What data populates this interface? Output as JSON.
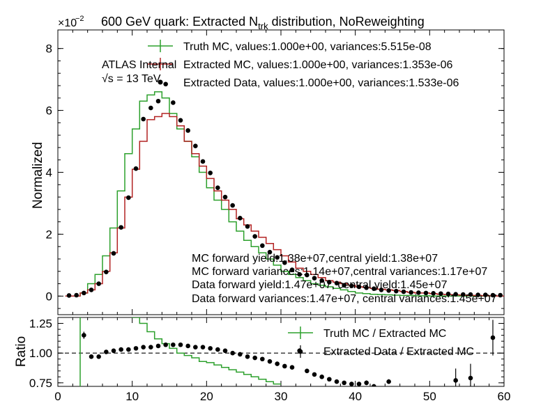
{
  "figure": {
    "title": "600 GeV quark: Extracted N",
    "title_sub": "trk",
    "title_tail": " distribution, NoReweighting",
    "scale_base": "×10",
    "scale_exp": "−2",
    "atlas_label": "ATLAS Internal",
    "energy_label": "√s = 13 TeV"
  },
  "notes": [
    "MC forward yield:1.38e+07,central yield:1.38e+07",
    "MC forward variances:1.14e+07,central variances:1.17e+07",
    "Data forward yield:1.47e+07, central yield:1.45e+07",
    "Data forward variances:1.47e+07, central variances:1.45e+07"
  ],
  "colors": {
    "truth": "#2ca02c",
    "extracted_mc": "#b22222",
    "data": "#000000"
  },
  "chart_data": [
    {
      "type": "step",
      "ylabel": "Normalized",
      "xlim": [
        0,
        60
      ],
      "ylim": [
        -0.006,
        0.086
      ],
      "yticks": [
        0,
        0.02,
        0.04,
        0.06,
        0.08
      ],
      "ytick_labels": [
        "0",
        "2",
        "4",
        "6",
        "8"
      ],
      "bin_edges": [
        1,
        2,
        3,
        4,
        5,
        6,
        7,
        8,
        9,
        10,
        11,
        12,
        13,
        14,
        15,
        16,
        17,
        18,
        19,
        20,
        21,
        22,
        23,
        24,
        25,
        26,
        27,
        28,
        29,
        30,
        31,
        32,
        33,
        34,
        35,
        36,
        37,
        38,
        39,
        40,
        41,
        42,
        43,
        44,
        45,
        46,
        47,
        48,
        49,
        50,
        51,
        52,
        53,
        54,
        55,
        56,
        57,
        58,
        59,
        60
      ],
      "series": [
        {
          "name": "Truth MC, values:1.000e+00, variances:5.515e-08",
          "kind": "step",
          "values": [
            0,
            0,
            0.001,
            0.004,
            0.007,
            0.013,
            0.022,
            0.034,
            0.046,
            0.054,
            0.063,
            0.065,
            0.066,
            0.064,
            0.059,
            0.054,
            0.05,
            0.045,
            0.04,
            0.035,
            0.031,
            0.028,
            0.024,
            0.021,
            0.018,
            0.016,
            0.014,
            0.012,
            0.01,
            0.008,
            0.007,
            0.006,
            0.005,
            0.004,
            0.0035,
            0.003,
            0.0025,
            0.002,
            0.0015,
            0.001,
            0.0008,
            0.0006,
            0.0005,
            0.0004,
            0.0003,
            0.0002,
            0.0002,
            0.0001,
            0.0001,
            0,
            0,
            0,
            0,
            0,
            0,
            0,
            0,
            0,
            0
          ]
        },
        {
          "name": "Extracted MC, values:1.000e+00, variances:1.353e-06",
          "kind": "step",
          "values": [
            0,
            0,
            0.001,
            0.002,
            0.004,
            0.008,
            0.014,
            0.022,
            0.032,
            0.041,
            0.05,
            0.057,
            0.058,
            0.059,
            0.058,
            0.055,
            0.05,
            0.046,
            0.042,
            0.038,
            0.034,
            0.031,
            0.028,
            0.025,
            0.023,
            0.021,
            0.019,
            0.017,
            0.015,
            0.013,
            0.011,
            0.009,
            0.008,
            0.007,
            0.006,
            0.005,
            0.0045,
            0.004,
            0.0035,
            0.003,
            0.0028,
            0.0025,
            0.0022,
            0.002,
            0.0018,
            0.0015,
            0.0012,
            0.001,
            0.001,
            0.0008,
            0.0006,
            0.0005,
            0.0004,
            0.0003,
            0.0002,
            0.0002,
            0.0001,
            0.0001,
            0
          ]
        },
        {
          "name": "Extracted Data, values:1.000e+00, variances:1.533e-06",
          "kind": "points",
          "x": [
            1.5,
            2.5,
            3.5,
            4.5,
            5.5,
            6.5,
            7.5,
            8.5,
            9.5,
            10.5,
            11.5,
            12.5,
            13.5,
            14.5,
            15.5,
            16.5,
            17.5,
            18.5,
            19.5,
            20.5,
            21.5,
            22.5,
            23.5,
            24.5,
            25.5,
            26.5,
            27.5,
            28.5,
            29.5,
            30.5,
            31.5,
            32.5,
            33.5,
            34.5,
            35.5,
            36.5,
            37.5,
            38.5,
            39.5,
            40.5,
            41.5,
            42.5,
            43.5,
            44.5,
            45.5,
            46.5,
            47.5,
            48.5,
            49.5,
            50.5,
            51.5,
            52.5,
            53.5,
            54.5,
            55.5,
            56.5,
            57.5,
            58.5,
            59.5
          ],
          "values": [
            0.0002,
            0.0003,
            0.001,
            0.002,
            0.004,
            0.0078,
            0.0138,
            0.0222,
            0.0318,
            0.0412,
            0.0572,
            0.0608,
            0.063,
            0.0685,
            0.0625,
            0.0568,
            0.0535,
            0.0485,
            0.0435,
            0.0398,
            0.035,
            0.032,
            0.0293,
            0.0252,
            0.0225,
            0.0193,
            0.0163,
            0.0142,
            0.0125,
            0.0108,
            0.0085,
            0.007,
            0.0068,
            0.0058,
            0.005,
            0.0045,
            0.0042,
            0.0035,
            0.0033,
            0.003,
            0.0027,
            0.0024,
            0.002,
            0.0018,
            0.0016,
            0.0014,
            0.0012,
            0.0011,
            0.001,
            0.0009,
            0.0008,
            0.0007,
            0.0006,
            0.0005,
            0.0005,
            0.0004,
            0.0004,
            0.0003,
            0.0003
          ]
        }
      ]
    },
    {
      "type": "step",
      "xlabel": "",
      "ylabel": "Ratio",
      "xlim": [
        0,
        60
      ],
      "ylim": [
        0.72,
        1.3
      ],
      "xticks": [
        0,
        10,
        20,
        30,
        40,
        50,
        60
      ],
      "xtick_labels": [
        "0",
        "10",
        "20",
        "30",
        "40",
        "50",
        "60"
      ],
      "yticks": [
        0.75,
        1.0,
        1.25
      ],
      "ytick_labels": [
        "0.75",
        "1.00",
        "1.25"
      ],
      "reference_line": 1.0,
      "series": [
        {
          "name": "Truth MC / Extracted MC",
          "kind": "step",
          "bin_edges": [
            1,
            2,
            3,
            4,
            5,
            6,
            7,
            8,
            9,
            10,
            11,
            12,
            13,
            14,
            15,
            16,
            17,
            18,
            19,
            20,
            21,
            22,
            23,
            24,
            25,
            26,
            27,
            28,
            29,
            30
          ],
          "values": [
            0.5,
            0.5,
            1.9,
            1.8,
            1.7,
            1.6,
            1.5,
            1.45,
            1.38,
            1.3,
            1.25,
            1.18,
            1.12,
            1.08,
            1.04,
            1.0,
            0.98,
            0.96,
            0.93,
            0.92,
            0.9,
            0.88,
            0.86,
            0.84,
            0.82,
            0.8,
            0.78,
            0.76,
            0.74
          ]
        },
        {
          "name": "Extracted Data / Extracted MC",
          "kind": "points",
          "x": [
            3.5,
            4.5,
            5.5,
            6.5,
            7.5,
            8.5,
            9.5,
            10.5,
            11.5,
            12.5,
            13.5,
            14.5,
            15.5,
            16.5,
            17.5,
            18.5,
            19.5,
            20.5,
            21.5,
            22.5,
            23.5,
            24.5,
            25.5,
            26.5,
            27.5,
            28.5,
            29.5,
            30.5,
            31.5,
            32.5,
            33.5,
            34.5,
            35.5,
            36.5,
            37.5,
            38.5,
            39.5,
            40.5,
            41.5,
            42.5,
            44.5,
            53.5,
            55.5,
            58.5
          ],
          "values": [
            1.15,
            0.97,
            0.97,
            1.01,
            1.02,
            1.03,
            1.03,
            1.04,
            1.05,
            1.05,
            1.06,
            1.07,
            1.07,
            1.07,
            1.06,
            1.05,
            1.05,
            1.04,
            1.03,
            1.02,
            1.0,
            0.99,
            0.97,
            0.96,
            0.95,
            0.93,
            0.91,
            0.89,
            0.88,
            1.02,
            0.85,
            0.82,
            0.8,
            0.78,
            0.76,
            0.75,
            0.74,
            0.74,
            0.75,
            0.72,
            0.76,
            0.77,
            0.79,
            1.13
          ],
          "errors": [
            0.03,
            0.01,
            0.01,
            0.01,
            0.01,
            0.01,
            0.01,
            0.01,
            0.01,
            0.01,
            0.01,
            0.01,
            0.01,
            0.01,
            0.01,
            0.01,
            0.01,
            0.01,
            0.01,
            0.01,
            0.01,
            0.01,
            0.01,
            0.01,
            0.01,
            0.01,
            0.01,
            0.01,
            0.01,
            0.02,
            0.01,
            0.01,
            0.01,
            0.01,
            0.01,
            0.01,
            0.01,
            0.01,
            0.02,
            0.02,
            0.02,
            0.1,
            0.12,
            0.15
          ]
        }
      ]
    }
  ]
}
